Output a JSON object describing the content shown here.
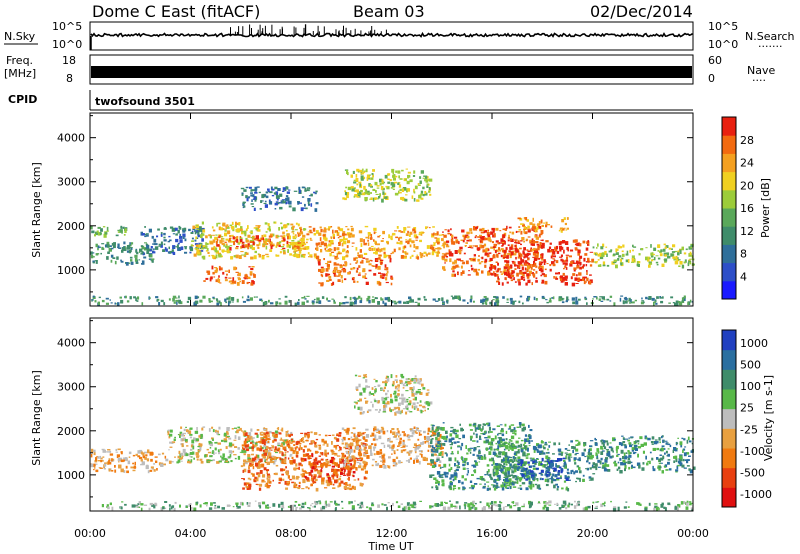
{
  "header": {
    "station": "Dome C East (fitACF)",
    "beam": "Beam 03",
    "date": "02/Dec/2014"
  },
  "aux_panels": {
    "nsky_label": "N.Sky",
    "nsky_ticks": [
      "10^5",
      "10^0"
    ],
    "nsearch_label": "N.Search",
    "freq_label_1": "Freq.",
    "freq_label_2": "[MHz]",
    "freq_ticks": [
      "18",
      "8"
    ],
    "nave_label": "Nave",
    "nave_ticks": [
      "60",
      "0"
    ],
    "cpid_label": "CPID",
    "cpid_value": "twofsound 3501"
  },
  "chart_data": [
    {
      "type": "heatmap",
      "name": "Power",
      "ylabel": "Slant Range [km]",
      "xlabel": "Time UT",
      "x_ticks": [
        "00:00",
        "04:00",
        "08:00",
        "12:00",
        "16:00",
        "20:00",
        "00:00"
      ],
      "y_ticks": [
        1000,
        2000,
        3000,
        4000
      ],
      "ylim": [
        180,
        4560
      ],
      "xlim_hours": [
        0,
        24
      ],
      "colorbar": {
        "label": "Power [dB]",
        "ticks": [
          "4",
          "8",
          "12",
          "16",
          "20",
          "24",
          "28"
        ],
        "colors": [
          "#1a1aff",
          "#2d4fc8",
          "#2f6f9a",
          "#3f8c6a",
          "#5aa85a",
          "#9ccc3a",
          "#f0d020",
          "#f4a020",
          "#f26a10",
          "#e82010"
        ]
      },
      "regions": [
        {
          "t0": 0.0,
          "t1": 24.0,
          "r0": 250,
          "r1": 420,
          "level": 3
        },
        {
          "t0": 0.0,
          "t1": 2.5,
          "r0": 1150,
          "r1": 1650,
          "level": 3
        },
        {
          "t0": 2.0,
          "t1": 4.5,
          "r0": 1400,
          "r1": 2000,
          "level": 2
        },
        {
          "t0": 4.0,
          "t1": 8.5,
          "r0": 1300,
          "r1": 2100,
          "level": 6
        },
        {
          "t0": 5.0,
          "t1": 8.0,
          "r0": 1500,
          "r1": 1800,
          "level": 8
        },
        {
          "t0": 4.5,
          "t1": 6.5,
          "r0": 700,
          "r1": 1100,
          "level": 8
        },
        {
          "t0": 8.0,
          "t1": 14.0,
          "r0": 1300,
          "r1": 2000,
          "level": 7
        },
        {
          "t0": 9.0,
          "t1": 12.0,
          "r0": 700,
          "r1": 1300,
          "level": 8
        },
        {
          "t0": 10.0,
          "t1": 13.5,
          "r0": 2600,
          "r1": 3300,
          "level": 5
        },
        {
          "t0": 6.0,
          "t1": 9.0,
          "r0": 2400,
          "r1": 2900,
          "level": 2
        },
        {
          "t0": 14.0,
          "t1": 18.0,
          "r0": 900,
          "r1": 2000,
          "level": 8
        },
        {
          "t0": 16.0,
          "t1": 20.0,
          "r0": 700,
          "r1": 1700,
          "level": 9
        },
        {
          "t0": 17.0,
          "t1": 19.0,
          "r0": 1900,
          "r1": 2200,
          "level": 7
        },
        {
          "t0": 20.0,
          "t1": 24.0,
          "r0": 1100,
          "r1": 1600,
          "level": 5
        },
        {
          "t0": 0.0,
          "t1": 1.5,
          "r0": 1800,
          "r1": 2000,
          "level": 4
        }
      ]
    },
    {
      "type": "heatmap",
      "name": "Velocity",
      "ylabel": "Slant Range [km]",
      "xlabel": "Time UT",
      "x_ticks": [
        "00:00",
        "04:00",
        "08:00",
        "12:00",
        "16:00",
        "20:00",
        "00:00"
      ],
      "y_ticks": [
        1000,
        2000,
        3000,
        4000
      ],
      "ylim": [
        180,
        4560
      ],
      "xlim_hours": [
        0,
        24
      ],
      "colorbar": {
        "label": "Velocity [m s-1]",
        "ticks": [
          "1000",
          "500",
          "100",
          "25",
          "-25",
          "-100",
          "-500",
          "-1000"
        ],
        "colors": [
          "#2040c0",
          "#2a6fa0",
          "#3f8c6a",
          "#58b848",
          "#bdbdbd",
          "#e8a040",
          "#f07a10",
          "#e84010",
          "#e01010"
        ]
      },
      "regions": [
        {
          "t0": 0.0,
          "t1": 24.0,
          "r0": 250,
          "r1": 420,
          "level": 3
        },
        {
          "t0": 0.0,
          "t1": 3.0,
          "r0": 1100,
          "r1": 1600,
          "level": 5
        },
        {
          "t0": 3.0,
          "t1": 8.0,
          "r0": 1300,
          "r1": 2100,
          "level": 4
        },
        {
          "t0": 6.0,
          "t1": 11.0,
          "r0": 700,
          "r1": 2000,
          "level": 6
        },
        {
          "t0": 8.5,
          "t1": 10.5,
          "r0": 900,
          "r1": 1500,
          "level": 7
        },
        {
          "t0": 10.0,
          "t1": 14.0,
          "r0": 1200,
          "r1": 2100,
          "level": 5
        },
        {
          "t0": 10.5,
          "t1": 13.5,
          "r0": 2400,
          "r1": 3300,
          "level": 4
        },
        {
          "t0": 13.5,
          "t1": 17.5,
          "r0": 700,
          "r1": 2200,
          "level": 2
        },
        {
          "t0": 16.0,
          "t1": 20.0,
          "r0": 700,
          "r1": 1800,
          "level": 2
        },
        {
          "t0": 17.0,
          "t1": 19.0,
          "r0": 900,
          "r1": 1400,
          "level": 0
        },
        {
          "t0": 20.0,
          "t1": 24.0,
          "r0": 1100,
          "r1": 1900,
          "level": 2
        }
      ]
    }
  ]
}
